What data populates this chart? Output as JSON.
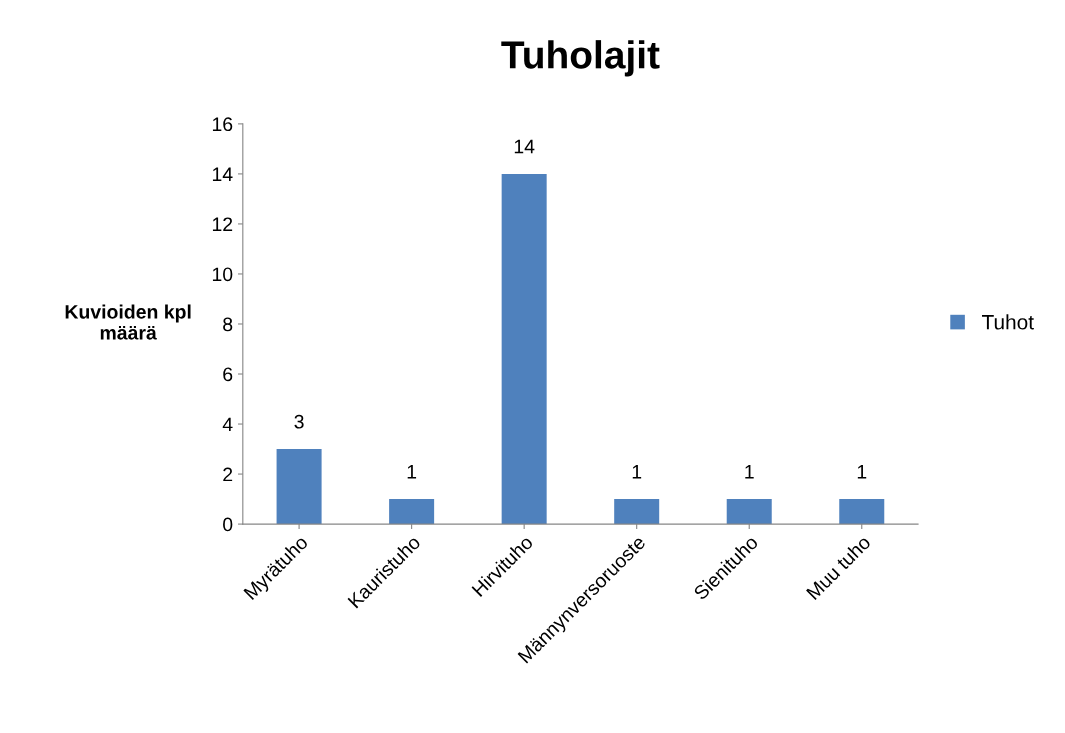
{
  "chart_data": {
    "type": "bar",
    "title": "Tuholajit",
    "ylabel": "Kuvioiden kpl\nmäärä",
    "categories": [
      "Myrätuho",
      "Kauristuho",
      "Hirvituho",
      "Männynversoruoste",
      "Sienituho",
      "Muu tuho"
    ],
    "series": [
      {
        "name": "Tuhot",
        "color": "#4f81bd",
        "values": [
          3,
          1,
          14,
          1,
          1,
          1
        ]
      }
    ],
    "ylim": [
      0,
      16
    ],
    "yticks": [
      0,
      2,
      4,
      6,
      8,
      10,
      12,
      14,
      16
    ],
    "grid": false,
    "legend": "right",
    "data_labels": true
  }
}
